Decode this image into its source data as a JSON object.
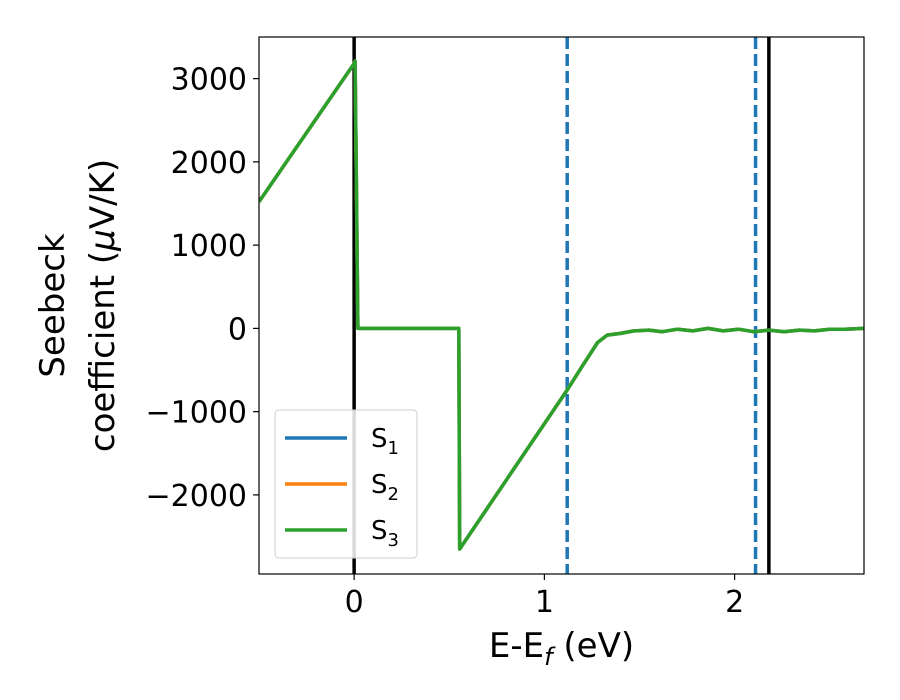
{
  "chart_data": {
    "type": "line",
    "xlabel": "E-E",
    "xlabel_sub": "f",
    "xlabel_unit": " (eV)",
    "ylabel_line1": "Seebeck",
    "ylabel_line2": "coefficient  (",
    "ylabel_mu": "μ",
    "ylabel_unit": "V/K)",
    "xlim": [
      -0.5,
      2.68
    ],
    "ylim": [
      -2950,
      3500
    ],
    "x_ticks": [
      0,
      1,
      2
    ],
    "x_tick_labels": [
      "0",
      "1",
      "2"
    ],
    "y_ticks": [
      -2000,
      -1000,
      0,
      1000,
      2000,
      3000
    ],
    "y_tick_labels": [
      "−2000",
      "−1000",
      "0",
      "1000",
      "2000",
      "3000"
    ],
    "legend_position": "lower-left",
    "series": [
      {
        "name": "S",
        "sub": "1",
        "color": "#1f77b4",
        "x": [
          -0.5,
          0.0,
          0.005,
          0.02,
          0.55,
          0.555,
          1.12,
          1.2,
          1.28,
          1.33,
          1.4,
          1.47,
          1.55,
          1.62,
          1.7,
          1.78,
          1.86,
          1.94,
          2.02,
          2.1,
          2.18,
          2.26,
          2.34,
          2.42,
          2.5,
          2.58,
          2.68
        ],
        "y": [
          1520,
          3180,
          3210,
          0,
          0,
          -2650,
          -740,
          -450,
          -170,
          -80,
          -60,
          -30,
          -20,
          -40,
          -10,
          -30,
          0,
          -30,
          -10,
          -40,
          -20,
          -40,
          -20,
          -30,
          -10,
          -10,
          0
        ]
      },
      {
        "name": "S",
        "sub": "2",
        "color": "#ff7f0e",
        "x": [
          -0.5,
          0.0,
          0.005,
          0.02,
          0.55,
          0.555,
          1.12,
          1.2,
          1.28,
          1.33,
          1.4,
          1.47,
          1.55,
          1.62,
          1.7,
          1.78,
          1.86,
          1.94,
          2.02,
          2.1,
          2.18,
          2.26,
          2.34,
          2.42,
          2.5,
          2.58,
          2.68
        ],
        "y": [
          1520,
          3180,
          3210,
          0,
          0,
          -2650,
          -740,
          -450,
          -170,
          -80,
          -60,
          -30,
          -20,
          -40,
          -10,
          -30,
          0,
          -30,
          -10,
          -40,
          -20,
          -40,
          -20,
          -30,
          -10,
          -10,
          0
        ]
      },
      {
        "name": "S",
        "sub": "3",
        "color": "#2ca02c",
        "x": [
          -0.5,
          0.0,
          0.005,
          0.02,
          0.55,
          0.555,
          1.12,
          1.2,
          1.28,
          1.33,
          1.4,
          1.47,
          1.55,
          1.62,
          1.7,
          1.78,
          1.86,
          1.94,
          2.02,
          2.1,
          2.18,
          2.26,
          2.34,
          2.42,
          2.5,
          2.58,
          2.68
        ],
        "y": [
          1520,
          3180,
          3210,
          0,
          0,
          -2650,
          -740,
          -450,
          -170,
          -80,
          -60,
          -30,
          -20,
          -40,
          -10,
          -30,
          0,
          -30,
          -10,
          -40,
          -20,
          -40,
          -20,
          -30,
          -10,
          -10,
          0
        ]
      }
    ],
    "vlines": [
      {
        "x": 0.0,
        "style": "solid",
        "color": "#000000"
      },
      {
        "x": 2.18,
        "style": "solid",
        "color": "#000000"
      },
      {
        "x": 1.12,
        "style": "dashed",
        "color": "#1f77b4"
      },
      {
        "x": 2.11,
        "style": "dashed",
        "color": "#1f77b4"
      }
    ]
  }
}
